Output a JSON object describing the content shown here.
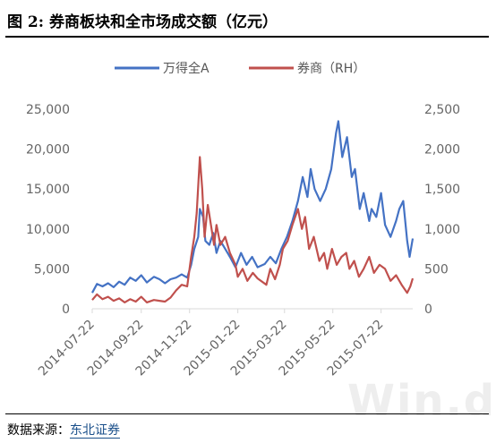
{
  "page": {
    "title": "图  2:  券商板块和全市场成交额（亿元）",
    "source_label": "数据来源：",
    "source_link": "东北证券",
    "watermark": "Win.d"
  },
  "colors": {
    "series_a": "#4472c4",
    "series_b": "#c0504d",
    "axis": "#d9d9d9"
  },
  "chart_data": {
    "type": "line",
    "x_ticks": [
      "2014-07-22",
      "2014-09-22",
      "2014-11-22",
      "2015-01-22",
      "2015-03-22",
      "2015-05-22",
      "2015-07-22"
    ],
    "x_range": [
      "2014-07-22",
      "2015-08-31"
    ],
    "ylim_left": [
      0,
      25000
    ],
    "ylim_right": [
      0,
      2500
    ],
    "y_ticks_left": [
      "0",
      "5,000",
      "10,000",
      "15,000",
      "20,000",
      "25,000"
    ],
    "y_ticks_right": [
      "0",
      "500",
      "1,000",
      "1,500",
      "2,000",
      "2,500"
    ],
    "legend_position": "top",
    "series": [
      {
        "name": "万得全A",
        "axis": "left",
        "points": [
          [
            "2014-07-22",
            2000
          ],
          [
            "2014-07-28",
            3100
          ],
          [
            "2014-08-04",
            2800
          ],
          [
            "2014-08-11",
            3200
          ],
          [
            "2014-08-18",
            2700
          ],
          [
            "2014-08-25",
            3400
          ],
          [
            "2014-09-01",
            3000
          ],
          [
            "2014-09-08",
            3900
          ],
          [
            "2014-09-15",
            3500
          ],
          [
            "2014-09-22",
            4200
          ],
          [
            "2014-09-29",
            3300
          ],
          [
            "2014-10-08",
            4000
          ],
          [
            "2014-10-15",
            3700
          ],
          [
            "2014-10-22",
            3200
          ],
          [
            "2014-10-29",
            3700
          ],
          [
            "2014-11-05",
            3900
          ],
          [
            "2014-11-12",
            4300
          ],
          [
            "2014-11-19",
            3900
          ],
          [
            "2014-11-24",
            5500
          ],
          [
            "2014-11-28",
            7500
          ],
          [
            "2014-12-03",
            9000
          ],
          [
            "2014-12-05",
            12500
          ],
          [
            "2014-12-09",
            11500
          ],
          [
            "2014-12-12",
            8500
          ],
          [
            "2014-12-17",
            8000
          ],
          [
            "2014-12-22",
            9500
          ],
          [
            "2014-12-26",
            7000
          ],
          [
            "2014-12-31",
            8500
          ],
          [
            "2015-01-06",
            7500
          ],
          [
            "2015-01-12",
            6500
          ],
          [
            "2015-01-19",
            5200
          ],
          [
            "2015-01-26",
            7000
          ],
          [
            "2015-02-02",
            5500
          ],
          [
            "2015-02-09",
            6500
          ],
          [
            "2015-02-16",
            5200
          ],
          [
            "2015-02-25",
            5600
          ],
          [
            "2015-03-04",
            6500
          ],
          [
            "2015-03-11",
            5700
          ],
          [
            "2015-03-18",
            7500
          ],
          [
            "2015-03-25",
            9000
          ],
          [
            "2015-04-01",
            11000
          ],
          [
            "2015-04-08",
            13500
          ],
          [
            "2015-04-14",
            16500
          ],
          [
            "2015-04-20",
            14000
          ],
          [
            "2015-04-24",
            17500
          ],
          [
            "2015-04-29",
            15000
          ],
          [
            "2015-05-06",
            13500
          ],
          [
            "2015-05-13",
            15000
          ],
          [
            "2015-05-20",
            17500
          ],
          [
            "2015-05-26",
            22000
          ],
          [
            "2015-05-29",
            23500
          ],
          [
            "2015-06-03",
            19000
          ],
          [
            "2015-06-09",
            21500
          ],
          [
            "2015-06-15",
            16500
          ],
          [
            "2015-06-19",
            17500
          ],
          [
            "2015-06-25",
            12500
          ],
          [
            "2015-06-30",
            14500
          ],
          [
            "2015-07-07",
            11000
          ],
          [
            "2015-07-10",
            12500
          ],
          [
            "2015-07-16",
            11500
          ],
          [
            "2015-07-22",
            14500
          ],
          [
            "2015-07-27",
            10500
          ],
          [
            "2015-08-03",
            9000
          ],
          [
            "2015-08-10",
            11000
          ],
          [
            "2015-08-14",
            12500
          ],
          [
            "2015-08-19",
            13500
          ],
          [
            "2015-08-24",
            8500
          ],
          [
            "2015-08-27",
            6500
          ],
          [
            "2015-08-31",
            8800
          ]
        ]
      },
      {
        "name": "券商（RH）",
        "axis": "right",
        "points": [
          [
            "2014-07-22",
            110
          ],
          [
            "2014-07-28",
            180
          ],
          [
            "2014-08-04",
            120
          ],
          [
            "2014-08-11",
            150
          ],
          [
            "2014-08-18",
            100
          ],
          [
            "2014-08-25",
            130
          ],
          [
            "2014-09-01",
            80
          ],
          [
            "2014-09-08",
            120
          ],
          [
            "2014-09-15",
            90
          ],
          [
            "2014-09-22",
            150
          ],
          [
            "2014-09-29",
            80
          ],
          [
            "2014-10-08",
            110
          ],
          [
            "2014-10-15",
            100
          ],
          [
            "2014-10-22",
            90
          ],
          [
            "2014-10-29",
            140
          ],
          [
            "2014-11-05",
            230
          ],
          [
            "2014-11-12",
            300
          ],
          [
            "2014-11-19",
            280
          ],
          [
            "2014-11-24",
            650
          ],
          [
            "2014-11-28",
            900
          ],
          [
            "2014-12-01",
            1200
          ],
          [
            "2014-12-05",
            1900
          ],
          [
            "2014-12-08",
            1500
          ],
          [
            "2014-12-11",
            900
          ],
          [
            "2014-12-15",
            1300
          ],
          [
            "2014-12-19",
            1050
          ],
          [
            "2014-12-23",
            800
          ],
          [
            "2014-12-26",
            1050
          ],
          [
            "2014-12-31",
            800
          ],
          [
            "2015-01-06",
            900
          ],
          [
            "2015-01-12",
            700
          ],
          [
            "2015-01-19",
            550
          ],
          [
            "2015-01-22",
            400
          ],
          [
            "2015-01-28",
            500
          ],
          [
            "2015-02-03",
            350
          ],
          [
            "2015-02-10",
            450
          ],
          [
            "2015-02-16",
            380
          ],
          [
            "2015-02-27",
            300
          ],
          [
            "2015-03-04",
            500
          ],
          [
            "2015-03-10",
            370
          ],
          [
            "2015-03-16",
            550
          ],
          [
            "2015-03-20",
            750
          ],
          [
            "2015-03-26",
            850
          ],
          [
            "2015-04-01",
            1050
          ],
          [
            "2015-04-08",
            1250
          ],
          [
            "2015-04-13",
            1000
          ],
          [
            "2015-04-17",
            1150
          ],
          [
            "2015-04-22",
            750
          ],
          [
            "2015-04-28",
            900
          ],
          [
            "2015-05-05",
            600
          ],
          [
            "2015-05-11",
            700
          ],
          [
            "2015-05-15",
            500
          ],
          [
            "2015-05-21",
            750
          ],
          [
            "2015-05-27",
            550
          ],
          [
            "2015-06-02",
            650
          ],
          [
            "2015-06-08",
            700
          ],
          [
            "2015-06-12",
            500
          ],
          [
            "2015-06-18",
            600
          ],
          [
            "2015-06-24",
            400
          ],
          [
            "2015-06-30",
            500
          ],
          [
            "2015-07-07",
            650
          ],
          [
            "2015-07-13",
            450
          ],
          [
            "2015-07-20",
            550
          ],
          [
            "2015-07-27",
            500
          ],
          [
            "2015-08-03",
            350
          ],
          [
            "2015-08-10",
            420
          ],
          [
            "2015-08-17",
            300
          ],
          [
            "2015-08-24",
            200
          ],
          [
            "2015-08-28",
            280
          ],
          [
            "2015-08-31",
            380
          ]
        ]
      }
    ]
  }
}
